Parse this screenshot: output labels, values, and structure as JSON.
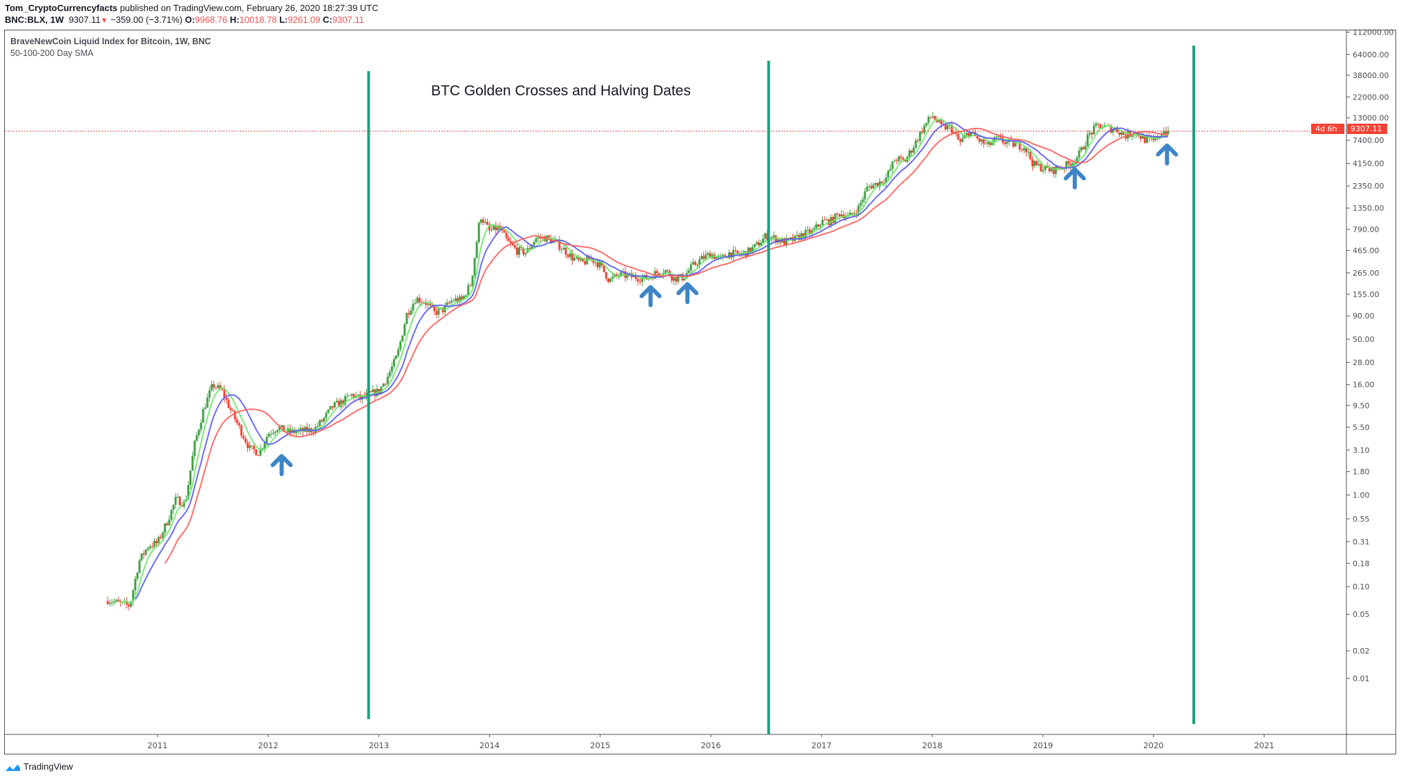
{
  "header": {
    "author": "Tom_CryptoCurrencyfacts",
    "published": "published on TradingView.com, February 26, 2020 18:27:39 UTC",
    "symbol": "BNC:BLX, 1W",
    "last": "9307.11",
    "change": "−359.00 (−3.71%)",
    "o_label": "O:",
    "o": "9968.76",
    "h_label": "H:",
    "h": "10018.78",
    "l_label": "L:",
    "l": "9261.09",
    "c_label": "C:",
    "c": "9307.11"
  },
  "legend": {
    "series_title": "BraveNewCoin Liquid Index for Bitcoin, 1W, BNC",
    "indicator": "50-100-200 Day SMA"
  },
  "price_label": "9307.11",
  "countdown_label": "4d 6h",
  "footer": {
    "brand": "TradingView"
  },
  "colors": {
    "up": "#43a047",
    "down": "#f44336",
    "sma50": "#6be86b",
    "sma100": "#5a5af5",
    "sma200": "#ff5c5c",
    "halving": "#1e9e7e",
    "arrow": "#3e85c6",
    "price_line": "#e53935"
  },
  "chart_data": {
    "type": "candlestick",
    "title": "BTC Golden Crosses and Halving Dates",
    "interval": "1W",
    "y_scale": "log",
    "ylim": [
      0.005,
      130000
    ],
    "xlim": [
      "2010-06",
      "2021-09"
    ],
    "y_ticks": [
      "112000.00",
      "64000.00",
      "38000.00",
      "22000.00",
      "13000.00",
      "7400.00",
      "4150.00",
      "2350.00",
      "1350.00",
      "790.00",
      "465.00",
      "265.00",
      "155.00",
      "90.00",
      "50.00",
      "28.00",
      "16.00",
      "9.50",
      "5.50",
      "3.10",
      "1.80",
      "1.00",
      "0.55",
      "0.31",
      "0.18",
      "0.10",
      "0.05",
      "0.02",
      "0.01"
    ],
    "x_ticks": [
      "2011",
      "2012",
      "2013",
      "2014",
      "2015",
      "2016",
      "2017",
      "2018",
      "2019",
      "2020",
      "2021"
    ],
    "monthly_close": {
      "2010": [
        null,
        null,
        null,
        null,
        null,
        null,
        0.07,
        0.065,
        0.062,
        0.19,
        0.28,
        0.3
      ],
      "2011": [
        0.5,
        0.9,
        0.8,
        3.5,
        8.7,
        16,
        13.5,
        8.2,
        5.1,
        3.2,
        2.9,
        4.7
      ],
      "2012": [
        5.5,
        4.9,
        4.9,
        5.0,
        5.2,
        6.7,
        9.3,
        10.2,
        12.4,
        11.2,
        12.6,
        13.5
      ],
      "2013": [
        20,
        33,
        93,
        140,
        129,
        97,
        106,
        135,
        133,
        204,
        1130,
        750
      ],
      "2014": [
        830,
        570,
        460,
        445,
        630,
        640,
        585,
        480,
        385,
        338,
        378,
        320
      ],
      "2015": [
        218,
        254,
        244,
        236,
        230,
        263,
        285,
        230,
        236,
        314,
        377,
        430
      ],
      "2016": [
        368,
        437,
        416,
        448,
        531,
        673,
        624,
        575,
        609,
        700,
        742,
        960
      ],
      "2017": [
        970,
        1190,
        1080,
        1350,
        2300,
        2480,
        2870,
        4700,
        4340,
        6450,
        10000,
        14000
      ],
      "2018": [
        10200,
        10300,
        6900,
        9200,
        7500,
        6400,
        7700,
        7000,
        6600,
        6300,
        4000,
        3700
      ],
      "2019": [
        3450,
        3800,
        4100,
        5300,
        8500,
        10800,
        10100,
        9600,
        8300,
        9200,
        7550,
        7200
      ],
      "2020": [
        9350,
        9307.11
      ]
    },
    "sma_periods_days": [
      50,
      100,
      200
    ],
    "last_price": 9307.11,
    "halving_dates": [
      "2012-11-28",
      "2016-07-09",
      "2020-05-12"
    ],
    "golden_cross_arrows": [
      {
        "date": "2012-02",
        "price": 2.2
      },
      {
        "date": "2015-06",
        "price": 153
      },
      {
        "date": "2015-10",
        "price": 165
      },
      {
        "date": "2019-04",
        "price": 2950
      },
      {
        "date": "2020-02",
        "price": 5370
      }
    ]
  }
}
